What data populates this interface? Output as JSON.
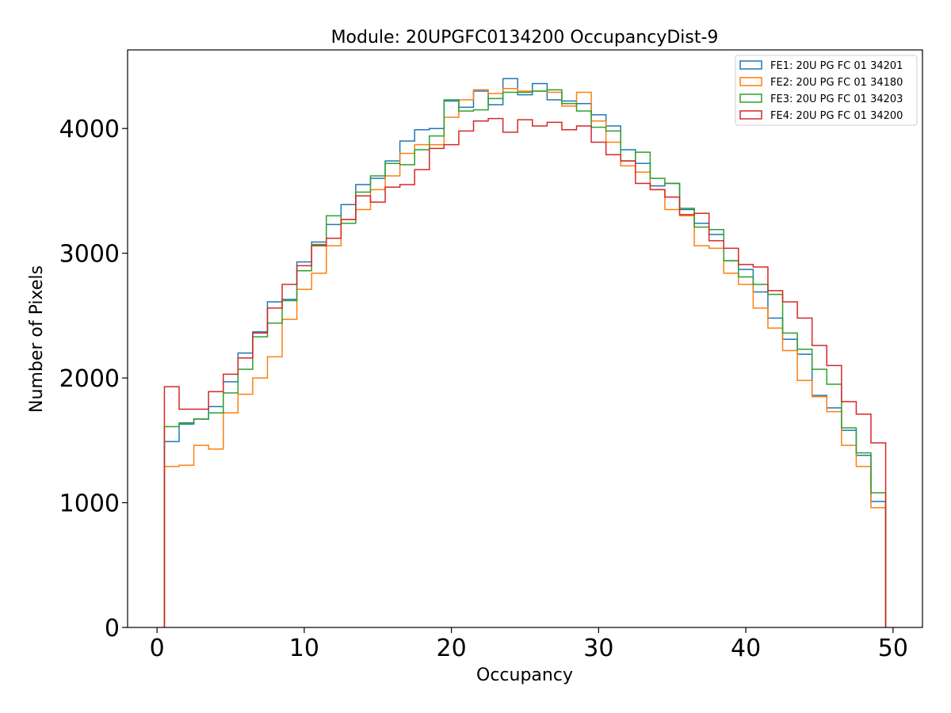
{
  "chart_data": {
    "type": "histogram",
    "title": "Module: 20UPGFC0134200 OccupancyDist-9",
    "xlabel": "Occupancy",
    "ylabel": "Number of Pixels",
    "xlim": [
      -2,
      52
    ],
    "ylim": [
      0,
      4630
    ],
    "xticks": [
      "0",
      "10",
      "20",
      "30",
      "40",
      "50"
    ],
    "yticks": [
      "0",
      "1000",
      "2000",
      "3000",
      "4000"
    ],
    "legend_position": "top-right",
    "grid": false,
    "bin_edges_start": 0.5,
    "bin_width": 1,
    "series": [
      {
        "name": "FE1: 20U PG FC 01 34201",
        "color": "#1f77b4",
        "values": [
          1490,
          1630,
          1670,
          1770,
          1970,
          2200,
          2370,
          2610,
          2630,
          2930,
          3090,
          3230,
          3390,
          3550,
          3600,
          3740,
          3900,
          3990,
          4000,
          4220,
          4170,
          4300,
          4190,
          4400,
          4270,
          4360,
          4230,
          4220,
          4200,
          4110,
          4020,
          3830,
          3720,
          3540,
          3560,
          3350,
          3240,
          3150,
          2940,
          2870,
          2690,
          2480,
          2310,
          2190,
          1860,
          1760,
          1580,
          1380,
          1010
        ]
      },
      {
        "name": "FE2: 20U PG FC 01 34180",
        "color": "#ff7f0e",
        "values": [
          1290,
          1300,
          1460,
          1430,
          1720,
          1870,
          2000,
          2170,
          2470,
          2710,
          2840,
          3060,
          3270,
          3350,
          3510,
          3620,
          3800,
          3870,
          3870,
          4090,
          4230,
          4310,
          4280,
          4320,
          4300,
          4300,
          4290,
          4180,
          4290,
          4060,
          3890,
          3700,
          3650,
          3510,
          3350,
          3300,
          3060,
          3040,
          2840,
          2750,
          2560,
          2400,
          2220,
          1980,
          1850,
          1730,
          1460,
          1290,
          960
        ]
      },
      {
        "name": "FE3: 20U PG FC 01 34203",
        "color": "#2ca02c",
        "values": [
          1610,
          1640,
          1670,
          1720,
          1880,
          2070,
          2330,
          2440,
          2620,
          2860,
          3070,
          3300,
          3240,
          3490,
          3620,
          3720,
          3710,
          3830,
          3940,
          4230,
          4140,
          4150,
          4240,
          4290,
          4290,
          4300,
          4310,
          4200,
          4140,
          4010,
          3980,
          3740,
          3810,
          3600,
          3560,
          3360,
          3210,
          3190,
          2940,
          2810,
          2750,
          2670,
          2360,
          2230,
          2070,
          1950,
          1600,
          1400,
          1080
        ]
      },
      {
        "name": "FE4: 20U PG FC 01 34200",
        "color": "#d62728",
        "values": [
          1930,
          1750,
          1750,
          1890,
          2030,
          2160,
          2360,
          2560,
          2750,
          2900,
          3060,
          3120,
          3270,
          3460,
          3410,
          3530,
          3550,
          3670,
          3840,
          3870,
          3980,
          4060,
          4080,
          3970,
          4070,
          4020,
          4050,
          3990,
          4020,
          3890,
          3790,
          3740,
          3560,
          3510,
          3450,
          3310,
          3320,
          3100,
          3040,
          2910,
          2890,
          2700,
          2610,
          2480,
          2260,
          2100,
          1810,
          1710,
          1480
        ]
      }
    ]
  }
}
